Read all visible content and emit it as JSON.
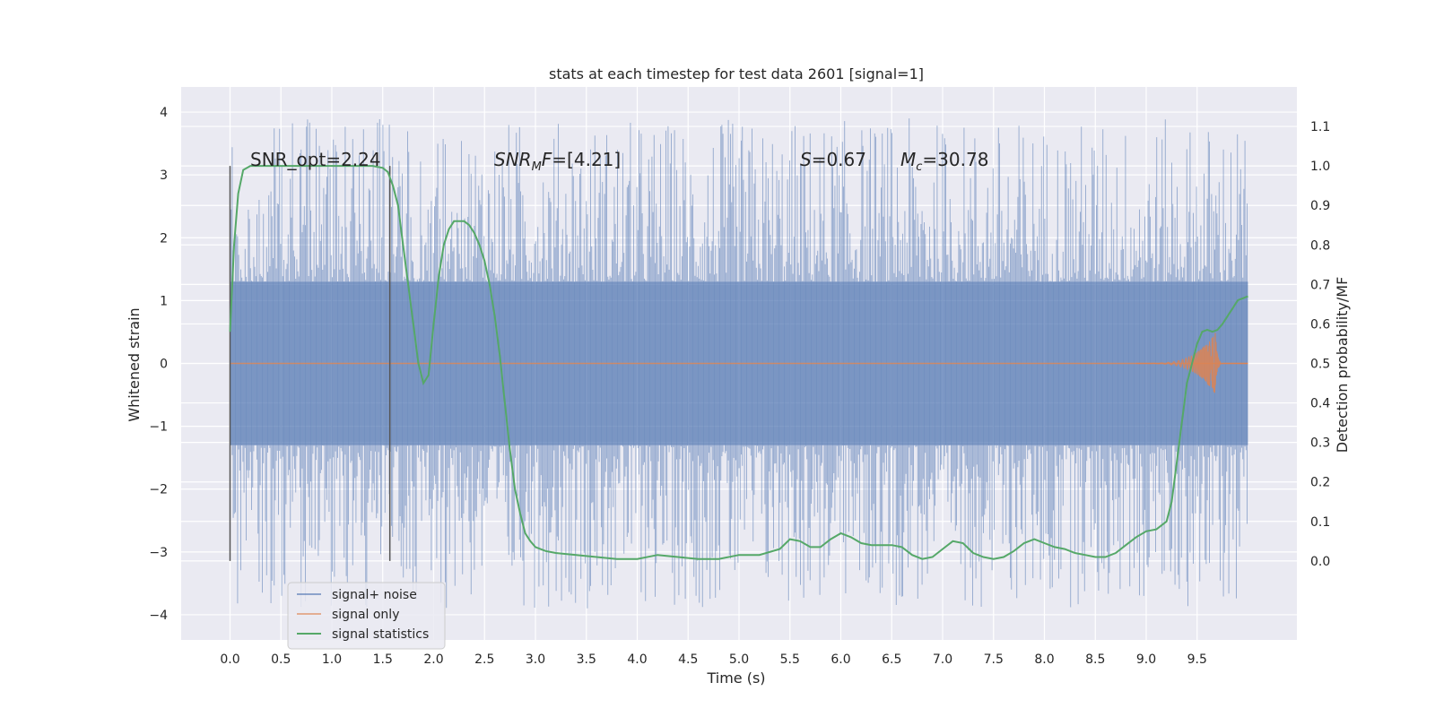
{
  "chart_data": {
    "type": "line",
    "title": "stats at each timestep for test data 2601 [signal=1]",
    "xlabel": "Time (s)",
    "ylabel": "Whitened strain",
    "ylabel_right": "Detection probability/MF",
    "xlim": [
      -0.48,
      10.48
    ],
    "ylim": [
      -4.4,
      4.4
    ],
    "ylim_right": [
      -0.2,
      1.2
    ],
    "xticks": [
      "0.0",
      "0.5",
      "1.0",
      "1.5",
      "2.0",
      "2.5",
      "3.0",
      "3.5",
      "4.0",
      "4.5",
      "5.0",
      "5.5",
      "6.0",
      "6.5",
      "7.0",
      "7.5",
      "8.0",
      "8.5",
      "9.0",
      "9.5"
    ],
    "yticks": [
      "4",
      "3",
      "2",
      "1",
      "0",
      "−1",
      "−2",
      "−3",
      "−4"
    ],
    "yticks_right": [
      "1.1",
      "1.0",
      "0.9",
      "0.8",
      "0.7",
      "0.6",
      "0.5",
      "0.4",
      "0.3",
      "0.2",
      "0.1",
      "0.0"
    ],
    "grid": true,
    "legend_position": "lower-left",
    "annotations": {
      "snr_opt": "SNR_opt=2.24",
      "snr_mf": "=[4.21]",
      "s_value": "=0.67",
      "mc_value": "=30.78"
    },
    "window_markers": [
      0.0,
      1.57
    ],
    "colors": {
      "noise": "#4c72b0",
      "signal": "#dd8452",
      "stats": "#55a868",
      "background": "#eaeaf2"
    },
    "series": [
      {
        "name": "signal+ noise",
        "x_range": [
          0.0,
          10.0
        ],
        "core_amplitude": 1.3,
        "display": "dense noise band"
      },
      {
        "name": "signal only",
        "chirp_peak_time": 9.68,
        "chirp_peak_amplitude": 0.5
      },
      {
        "name": "signal statistics",
        "axis": "right",
        "x": [
          0.0,
          0.04,
          0.08,
          0.13,
          0.2,
          0.3,
          0.4,
          0.5,
          0.7,
          0.9,
          1.1,
          1.3,
          1.4,
          1.5,
          1.55,
          1.6,
          1.65,
          1.7,
          1.75,
          1.8,
          1.85,
          1.9,
          1.95,
          2.0,
          2.05,
          2.1,
          2.15,
          2.2,
          2.25,
          2.3,
          2.35,
          2.4,
          2.45,
          2.5,
          2.55,
          2.6,
          2.65,
          2.7,
          2.75,
          2.8,
          2.85,
          2.9,
          2.95,
          3.0,
          3.1,
          3.2,
          3.4,
          3.6,
          3.8,
          4.0,
          4.2,
          4.4,
          4.6,
          4.8,
          5.0,
          5.2,
          5.4,
          5.5,
          5.6,
          5.7,
          5.8,
          5.9,
          6.0,
          6.1,
          6.2,
          6.3,
          6.4,
          6.5,
          6.6,
          6.7,
          6.8,
          6.9,
          7.0,
          7.1,
          7.2,
          7.3,
          7.4,
          7.5,
          7.6,
          7.7,
          7.8,
          7.9,
          8.0,
          8.1,
          8.2,
          8.3,
          8.4,
          8.5,
          8.6,
          8.7,
          8.8,
          8.9,
          9.0,
          9.1,
          9.2,
          9.25,
          9.3,
          9.35,
          9.4,
          9.45,
          9.5,
          9.55,
          9.6,
          9.65,
          9.7,
          9.75,
          9.8,
          9.85,
          9.9,
          9.95,
          10.0
        ],
        "y": [
          0.58,
          0.8,
          0.93,
          0.99,
          1.0,
          1.0,
          1.0,
          1.0,
          1.0,
          1.0,
          1.0,
          1.0,
          1.0,
          0.995,
          0.985,
          0.95,
          0.9,
          0.8,
          0.7,
          0.6,
          0.5,
          0.45,
          0.47,
          0.6,
          0.72,
          0.8,
          0.84,
          0.86,
          0.86,
          0.86,
          0.85,
          0.83,
          0.8,
          0.76,
          0.7,
          0.62,
          0.52,
          0.4,
          0.28,
          0.18,
          0.12,
          0.07,
          0.05,
          0.035,
          0.025,
          0.02,
          0.015,
          0.01,
          0.005,
          0.005,
          0.015,
          0.01,
          0.005,
          0.005,
          0.015,
          0.015,
          0.03,
          0.055,
          0.05,
          0.035,
          0.035,
          0.055,
          0.07,
          0.06,
          0.045,
          0.04,
          0.04,
          0.04,
          0.035,
          0.015,
          0.005,
          0.01,
          0.03,
          0.05,
          0.045,
          0.02,
          0.01,
          0.005,
          0.01,
          0.025,
          0.045,
          0.055,
          0.045,
          0.035,
          0.03,
          0.02,
          0.015,
          0.01,
          0.01,
          0.02,
          0.04,
          0.06,
          0.075,
          0.08,
          0.1,
          0.15,
          0.25,
          0.35,
          0.45,
          0.5,
          0.55,
          0.58,
          0.585,
          0.58,
          0.585,
          0.6,
          0.62,
          0.64,
          0.66,
          0.665,
          0.67
        ]
      }
    ]
  }
}
